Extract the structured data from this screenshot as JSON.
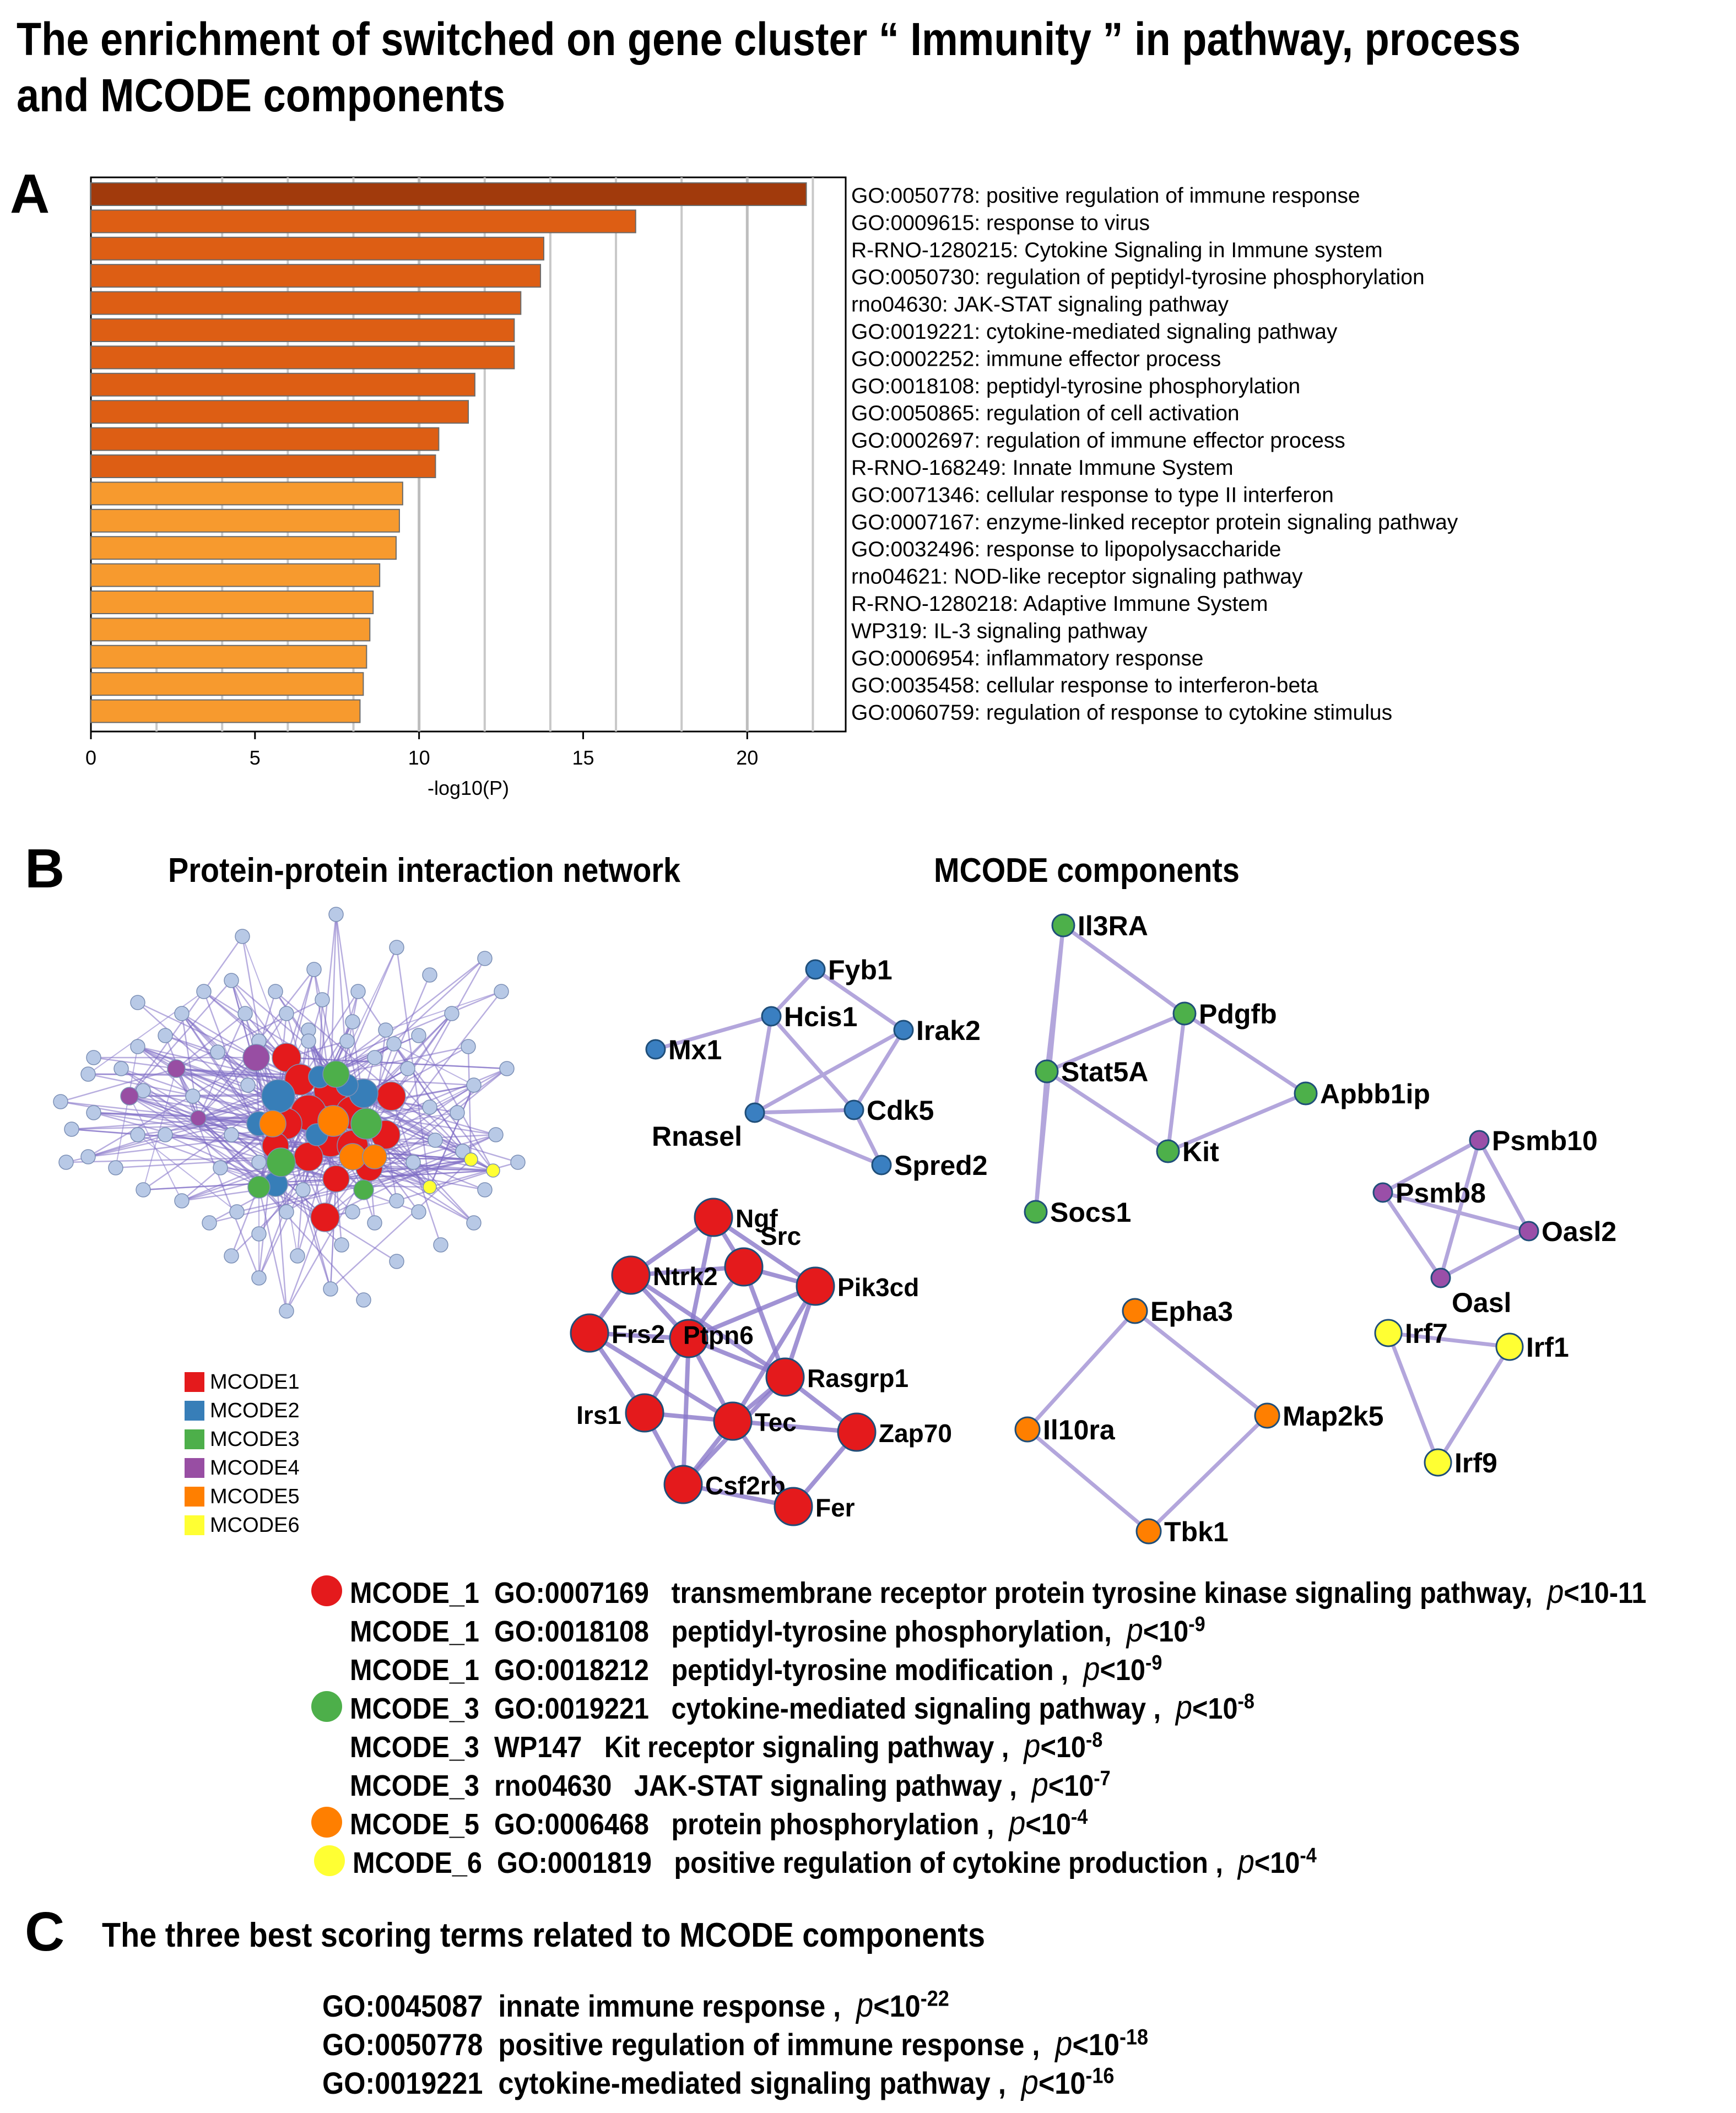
{
  "title": {
    "line1": "The enrichment of switched on gene cluster “ Immunity ”  in pathway, process",
    "line2": "and MCODE components"
  },
  "panel_labels": {
    "a": "A",
    "b": "B",
    "c": "C"
  },
  "chart_data": {
    "type": "bar",
    "orientation": "horizontal",
    "xlabel": "-log10(P)",
    "xlim": [
      0,
      23
    ],
    "xticks": [
      0,
      5,
      10,
      15,
      20
    ],
    "categories": [
      "GO:0050778: positive regulation of immune response",
      "GO:0009615: response to virus",
      "R-RNO-1280215: Cytokine Signaling in Immune system",
      "GO:0050730: regulation of peptidyl-tyrosine phosphorylation",
      "rno04630: JAK-STAT signaling pathway",
      "GO:0019221: cytokine-mediated signaling pathway",
      "GO:0002252: immune effector process",
      "GO:0018108: peptidyl-tyrosine phosphorylation",
      "GO:0050865: regulation of cell activation",
      "GO:0002697: regulation of immune effector process",
      "R-RNO-168249: Innate Immune System",
      "GO:0071346: cellular response to type II interferon",
      "GO:0007167: enzyme-linked receptor protein signaling pathway",
      "GO:0032496: response to lipopolysaccharide",
      "rno04621: NOD-like receptor signaling pathway",
      "R-RNO-1280218: Adaptive Immune System",
      "WP319: IL-3 signaling pathway",
      "GO:0006954: inflammatory response",
      "GO:0035458: cellular response to interferon-beta",
      "GO:0060759: regulation of response to cytokine stimulus"
    ],
    "values": [
      21.8,
      16.6,
      13.8,
      13.7,
      13.1,
      12.9,
      12.9,
      11.7,
      11.5,
      10.6,
      10.5,
      9.5,
      9.4,
      9.3,
      8.8,
      8.6,
      8.5,
      8.4,
      8.3,
      8.2
    ],
    "bar_colors": [
      "#a13a0c",
      "#dd5e14",
      "#dd5e14",
      "#dd5e14",
      "#dd5e14",
      "#dd5e14",
      "#dd5e14",
      "#dd5e14",
      "#dd5e14",
      "#dd5e14",
      "#dd5e14",
      "#f79a2e",
      "#f79a2e",
      "#f79a2e",
      "#f79a2e",
      "#f79a2e",
      "#f79a2e",
      "#f79a2e",
      "#f79a2e",
      "#f79a2e"
    ]
  },
  "ppi": {
    "title": "Protein-protein interaction network",
    "legend": [
      {
        "label": "MCODE1",
        "color": "#e41a1c"
      },
      {
        "label": "MCODE2",
        "color": "#377eb8"
      },
      {
        "label": "MCODE3",
        "color": "#4daf4a"
      },
      {
        "label": "MCODE4",
        "color": "#984ea3"
      },
      {
        "label": "MCODE5",
        "color": "#ff7f00"
      },
      {
        "label": "MCODE6",
        "color": "#ffff33"
      }
    ]
  },
  "mcode": {
    "title": "MCODE components",
    "clusters": [
      {
        "color": "#3a7fc1",
        "nodes": [
          "Fyb1",
          "Hcis1",
          "Irak2",
          "Mx1",
          "Rnasel",
          "Cdk5",
          "Spred2"
        ]
      },
      {
        "color": "#4db04a",
        "nodes": [
          "Il3RA",
          "Pdgfb",
          "Stat5A",
          "Apbb1ip",
          "Kit",
          "Socs1"
        ]
      },
      {
        "color": "#9a4fa8",
        "nodes": [
          "Psmb10",
          "Psmb8",
          "Oasl2",
          "Oasl"
        ]
      },
      {
        "color": "#e41a1c",
        "nodes": [
          "Ngf",
          "Ntrk2",
          "Src",
          "Pik3cd",
          "Frs2",
          "Ptpn6",
          "Rasgrp1",
          "Irs1",
          "Tec",
          "Zap70",
          "Csf2rb",
          "Fer"
        ]
      },
      {
        "color": "#ff7f00",
        "nodes": [
          "Epha3",
          "Il10ra",
          "Map2k5",
          "Tbk1"
        ]
      },
      {
        "color": "#ffff33",
        "nodes": [
          "Irf7",
          "Irf1",
          "Irf9"
        ]
      }
    ]
  },
  "enrichment": [
    {
      "component": "MCODE_1",
      "term": "GO:0007169",
      "desc": "transmembrane receptor protein tyrosine kinase signaling pathway,",
      "p": "p",
      "lt": "<10-11",
      "exp": "",
      "dot": "#e41a1c"
    },
    {
      "component": "MCODE_1",
      "term": "GO:0018108",
      "desc": "peptidyl-tyrosine phosphorylation,",
      "p": "p",
      "lt": "<10",
      "exp": "-9",
      "dot": ""
    },
    {
      "component": "MCODE_1",
      "term": "GO:0018212",
      "desc": "peptidyl-tyrosine modification ,",
      "p": "p",
      "lt": "<10",
      "exp": "-9",
      "dot": ""
    },
    {
      "component": "MCODE_3",
      "term": "GO:0019221",
      "desc": "cytokine-mediated signaling pathway ,",
      "p": "p",
      "lt": "<10",
      "exp": "-8",
      "dot": "#4daf4a"
    },
    {
      "component": "MCODE_3",
      "term": "WP147",
      "desc": "Kit receptor signaling pathway ,",
      "p": "p",
      "lt": "<10",
      "exp": "-8",
      "dot": ""
    },
    {
      "component": "MCODE_3",
      "term": "rno04630",
      "desc": "JAK-STAT signaling pathway ,",
      "p": "p",
      "lt": "<10",
      "exp": "-7",
      "dot": ""
    },
    {
      "component": "MCODE_5",
      "term": "GO:0006468",
      "desc": "protein phosphorylation ,",
      "p": "p",
      "lt": "<10",
      "exp": "-4",
      "dot": "#ff7f00"
    },
    {
      "component": "MCODE_6",
      "term": "GO:0001819",
      "desc": "positive regulation of cytokine production ,",
      "p": "p",
      "lt": "<10",
      "exp": "-4",
      "dot": "#ffff33"
    }
  ],
  "best_terms": {
    "title": "The three best scoring terms related to MCODE components",
    "items": [
      {
        "term": "GO:0045087",
        "desc": "innate immune response ,",
        "p": "p",
        "lt": "<10",
        "exp": "-22"
      },
      {
        "term": "GO:0050778",
        "desc": "positive regulation of immune response ,",
        "p": "p",
        "lt": "<10",
        "exp": "-18"
      },
      {
        "term": "GO:0019221",
        "desc": "cytokine-mediated signaling pathway ,",
        "p": "p",
        "lt": "<10",
        "exp": "-16"
      }
    ]
  }
}
